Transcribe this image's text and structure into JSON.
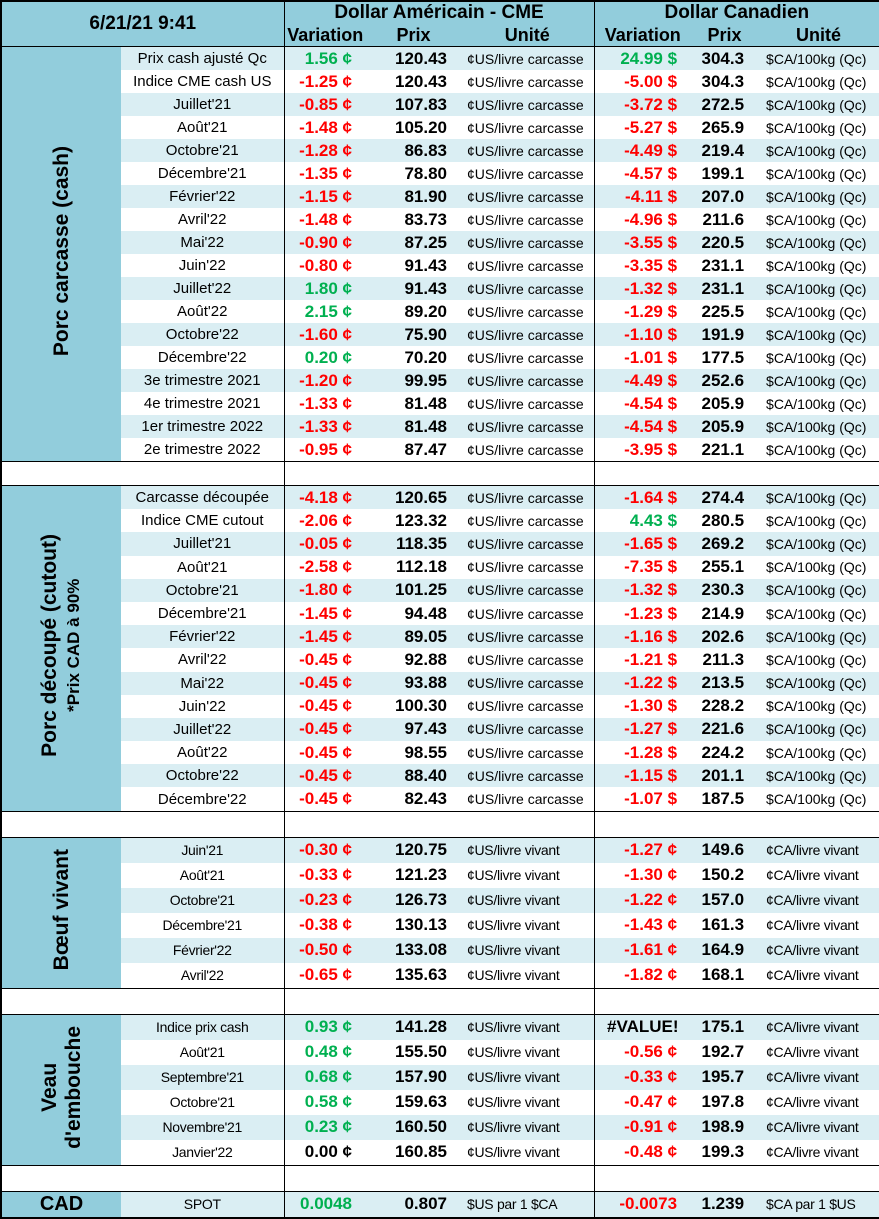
{
  "header": {
    "datetime": "6/21/21 9:41",
    "usd_title": "Dollar Américain - CME",
    "cad_title": "Dollar Canadien",
    "col_variation": "Variation",
    "col_prix": "Prix",
    "col_unite": "Unité"
  },
  "colors": {
    "header": "#92CDDC",
    "row_light": "#DAEEF3",
    "positive": "#00B050",
    "negative": "#FF0000"
  },
  "sections": [
    {
      "title": "Porc carcasse (cash)",
      "subtitle": "",
      "us_unit": "¢US/livre carcasse",
      "cad_unit": "$CA/100kg (Qc)",
      "rows": [
        {
          "label": "Prix cash ajusté Qc",
          "us_var": "1.56 ¢",
          "us_prix": "120.43",
          "cad_var": "24.99 $",
          "cad_prix": "304.3"
        },
        {
          "label": "Indice CME cash US",
          "us_var": "-1.25 ¢",
          "us_prix": "120.43",
          "cad_var": "-5.00 $",
          "cad_prix": "304.3"
        },
        {
          "label": "Juillet'21",
          "us_var": "-0.85 ¢",
          "us_prix": "107.83",
          "cad_var": "-3.72 $",
          "cad_prix": "272.5"
        },
        {
          "label": "Août'21",
          "us_var": "-1.48 ¢",
          "us_prix": "105.20",
          "cad_var": "-5.27 $",
          "cad_prix": "265.9"
        },
        {
          "label": "Octobre'21",
          "us_var": "-1.28 ¢",
          "us_prix": "86.83",
          "cad_var": "-4.49 $",
          "cad_prix": "219.4"
        },
        {
          "label": "Décembre'21",
          "us_var": "-1.35 ¢",
          "us_prix": "78.80",
          "cad_var": "-4.57 $",
          "cad_prix": "199.1"
        },
        {
          "label": "Février'22",
          "us_var": "-1.15 ¢",
          "us_prix": "81.90",
          "cad_var": "-4.11 $",
          "cad_prix": "207.0"
        },
        {
          "label": "Avril'22",
          "us_var": "-1.48 ¢",
          "us_prix": "83.73",
          "cad_var": "-4.96 $",
          "cad_prix": "211.6"
        },
        {
          "label": "Mai'22",
          "us_var": "-0.90 ¢",
          "us_prix": "87.25",
          "cad_var": "-3.55 $",
          "cad_prix": "220.5"
        },
        {
          "label": "Juin'22",
          "us_var": "-0.80 ¢",
          "us_prix": "91.43",
          "cad_var": "-3.35 $",
          "cad_prix": "231.1"
        },
        {
          "label": "Juillet'22",
          "us_var": "1.80 ¢",
          "us_prix": "91.43",
          "cad_var": "-1.32 $",
          "cad_prix": "231.1"
        },
        {
          "label": "Août'22",
          "us_var": "2.15 ¢",
          "us_prix": "89.20",
          "cad_var": "-1.29 $",
          "cad_prix": "225.5"
        },
        {
          "label": "Octobre'22",
          "us_var": "-1.60 ¢",
          "us_prix": "75.90",
          "cad_var": "-1.10 $",
          "cad_prix": "191.9"
        },
        {
          "label": "Décembre'22",
          "us_var": "0.20 ¢",
          "us_prix": "70.20",
          "cad_var": "-1.01 $",
          "cad_prix": "177.5"
        },
        {
          "label": "3e trimestre 2021",
          "us_var": "-1.20 ¢",
          "us_prix": "99.95",
          "cad_var": "-4.49 $",
          "cad_prix": "252.6"
        },
        {
          "label": "4e trimestre 2021",
          "us_var": "-1.33 ¢",
          "us_prix": "81.48",
          "cad_var": "-4.54 $",
          "cad_prix": "205.9"
        },
        {
          "label": "1er trimestre 2022",
          "us_var": "-1.33 ¢",
          "us_prix": "81.48",
          "cad_var": "-4.54 $",
          "cad_prix": "205.9"
        },
        {
          "label": "2e trimestre 2022",
          "us_var": "-0.95 ¢",
          "us_prix": "87.47",
          "cad_var": "-3.95 $",
          "cad_prix": "221.1"
        }
      ]
    },
    {
      "title": "Porc découpé (cutout)",
      "subtitle": "*Prix CAD à 90%",
      "us_unit": "¢US/livre carcasse",
      "cad_unit": "$CA/100kg (Qc)",
      "rows": [
        {
          "label": "Carcasse découpée",
          "us_var": "-4.18 ¢",
          "us_prix": "120.65",
          "cad_var": "-1.64 $",
          "cad_prix": "274.4"
        },
        {
          "label": "Indice CME cutout",
          "us_var": "-2.06 ¢",
          "us_prix": "123.32",
          "cad_var": "4.43 $",
          "cad_prix": "280.5"
        },
        {
          "label": "Juillet'21",
          "us_var": "-0.05 ¢",
          "us_prix": "118.35",
          "cad_var": "-1.65 $",
          "cad_prix": "269.2"
        },
        {
          "label": "Août'21",
          "us_var": "-2.58 ¢",
          "us_prix": "112.18",
          "cad_var": "-7.35 $",
          "cad_prix": "255.1"
        },
        {
          "label": "Octobre'21",
          "us_var": "-1.80 ¢",
          "us_prix": "101.25",
          "cad_var": "-1.32 $",
          "cad_prix": "230.3"
        },
        {
          "label": "Décembre'21",
          "us_var": "-1.45 ¢",
          "us_prix": "94.48",
          "cad_var": "-1.23 $",
          "cad_prix": "214.9"
        },
        {
          "label": "Février'22",
          "us_var": "-1.45 ¢",
          "us_prix": "89.05",
          "cad_var": "-1.16 $",
          "cad_prix": "202.6"
        },
        {
          "label": "Avril'22",
          "us_var": "-0.45 ¢",
          "us_prix": "92.88",
          "cad_var": "-1.21 $",
          "cad_prix": "211.3"
        },
        {
          "label": "Mai'22",
          "us_var": "-0.45 ¢",
          "us_prix": "93.88",
          "cad_var": "-1.22 $",
          "cad_prix": "213.5"
        },
        {
          "label": "Juin'22",
          "us_var": "-0.45 ¢",
          "us_prix": "100.30",
          "cad_var": "-1.30 $",
          "cad_prix": "228.2"
        },
        {
          "label": "Juillet'22",
          "us_var": "-0.45 ¢",
          "us_prix": "97.43",
          "cad_var": "-1.27 $",
          "cad_prix": "221.6"
        },
        {
          "label": "Août'22",
          "us_var": "-0.45 ¢",
          "us_prix": "98.55",
          "cad_var": "-1.28 $",
          "cad_prix": "224.2"
        },
        {
          "label": "Octobre'22",
          "us_var": "-0.45 ¢",
          "us_prix": "88.40",
          "cad_var": "-1.15 $",
          "cad_prix": "201.1"
        },
        {
          "label": "Décembre'22",
          "us_var": "-0.45 ¢",
          "us_prix": "82.43",
          "cad_var": "-1.07 $",
          "cad_prix": "187.5"
        }
      ]
    },
    {
      "title": "Bœuf vivant",
      "subtitle": "",
      "us_unit": "¢US/livre vivant",
      "cad_unit": "¢CA/livre vivant",
      "rows": [
        {
          "label": "Juin'21",
          "us_var": "-0.30 ¢",
          "us_prix": "120.75",
          "cad_var": "-1.27 ¢",
          "cad_prix": "149.6"
        },
        {
          "label": "Août'21",
          "us_var": "-0.33 ¢",
          "us_prix": "121.23",
          "cad_var": "-1.30 ¢",
          "cad_prix": "150.2"
        },
        {
          "label": "Octobre'21",
          "us_var": "-0.23 ¢",
          "us_prix": "126.73",
          "cad_var": "-1.22 ¢",
          "cad_prix": "157.0"
        },
        {
          "label": "Décembre'21",
          "us_var": "-0.38 ¢",
          "us_prix": "130.13",
          "cad_var": "-1.43 ¢",
          "cad_prix": "161.3"
        },
        {
          "label": "Février'22",
          "us_var": "-0.50 ¢",
          "us_prix": "133.08",
          "cad_var": "-1.61 ¢",
          "cad_prix": "164.9"
        },
        {
          "label": "Avril'22",
          "us_var": "-0.65 ¢",
          "us_prix": "135.63",
          "cad_var": "-1.82 ¢",
          "cad_prix": "168.1"
        }
      ]
    },
    {
      "title": "Veau",
      "subtitle": "d'embouche",
      "us_unit": "¢US/livre vivant",
      "cad_unit": "¢CA/livre vivant",
      "rows": [
        {
          "label": "Indice prix cash",
          "us_var": "0.93 ¢",
          "us_prix": "141.28",
          "cad_var": "#VALUE!",
          "cad_prix": "175.1"
        },
        {
          "label": "Août'21",
          "us_var": "0.48 ¢",
          "us_prix": "155.50",
          "cad_var": "-0.56 ¢",
          "cad_prix": "192.7"
        },
        {
          "label": "Septembre'21",
          "us_var": "0.68 ¢",
          "us_prix": "157.90",
          "cad_var": "-0.33 ¢",
          "cad_prix": "195.7"
        },
        {
          "label": "Octobre'21",
          "us_var": "0.58 ¢",
          "us_prix": "159.63",
          "cad_var": "-0.47 ¢",
          "cad_prix": "197.8"
        },
        {
          "label": "Novembre'21",
          "us_var": "0.23 ¢",
          "us_prix": "160.50",
          "cad_var": "-0.91 ¢",
          "cad_prix": "198.9"
        },
        {
          "label": "Janvier'22",
          "us_var": "0.00 ¢",
          "us_prix": "160.85",
          "cad_var": "-0.48 ¢",
          "cad_prix": "199.3"
        }
      ]
    }
  ],
  "cad": {
    "title": "CAD",
    "label": "SPOT",
    "us_var": "0.0048",
    "us_prix": "0.807",
    "us_unit": "$US par 1 $CA",
    "cad_var": "-0.0073",
    "cad_prix": "1.239",
    "cad_unit": "$CA par 1 $US"
  }
}
